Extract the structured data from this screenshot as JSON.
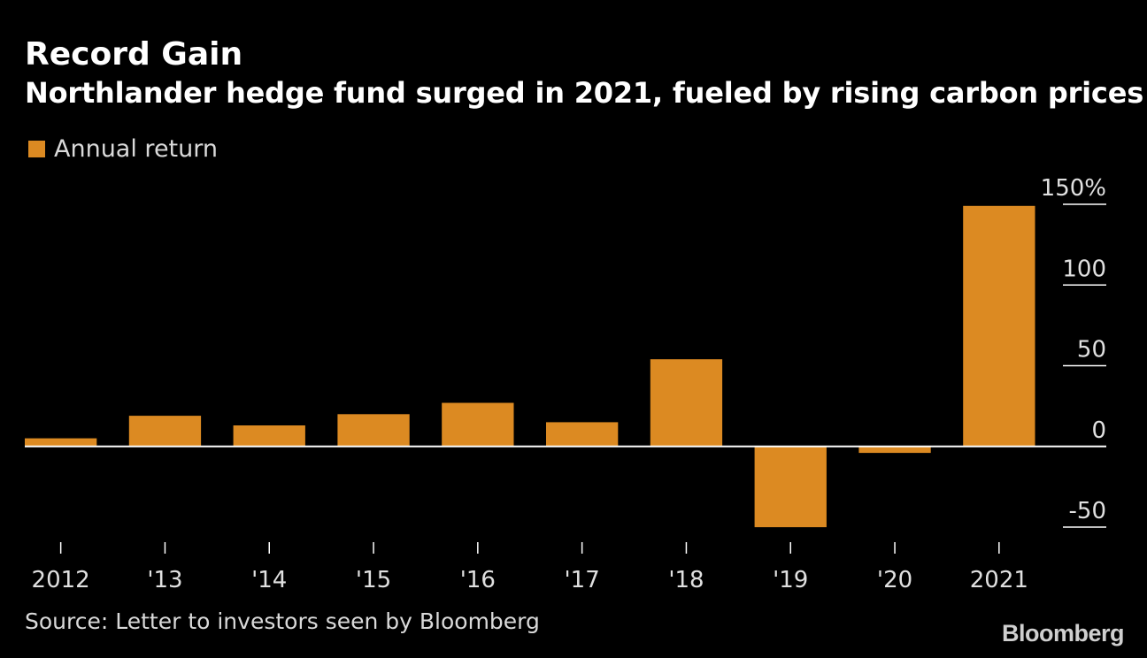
{
  "header": {
    "title": "Record Gain",
    "subtitle": "Northlander hedge fund surged in 2021, fueled by rising carbon prices"
  },
  "legend": {
    "label": "Annual return",
    "color": "#dc8a22"
  },
  "footer": {
    "source": "Source: Letter to investors seen by Bloomberg",
    "brand": "Bloomberg"
  },
  "chart_data": {
    "type": "bar",
    "title": "Record Gain",
    "subtitle": "Northlander hedge fund surged in 2021, fueled by rising carbon prices",
    "xlabel": "",
    "ylabel": "",
    "categories": [
      "2012",
      "'13",
      "'14",
      "'15",
      "'16",
      "'17",
      "'18",
      "'19",
      "'20",
      "2021"
    ],
    "series": [
      {
        "name": "Annual return",
        "values": [
          5,
          19,
          13,
          20,
          27,
          15,
          54,
          -50,
          -4,
          149
        ],
        "color": "#dc8a22"
      }
    ],
    "ylim": [
      -50,
      150
    ],
    "yticks": [
      {
        "value": 150,
        "label": "150%"
      },
      {
        "value": 100,
        "label": "100"
      },
      {
        "value": 50,
        "label": "50"
      },
      {
        "value": 0,
        "label": "0"
      },
      {
        "value": -50,
        "label": "-50"
      }
    ],
    "axis_position": "right",
    "grid": false,
    "legend_position": "top-left"
  }
}
